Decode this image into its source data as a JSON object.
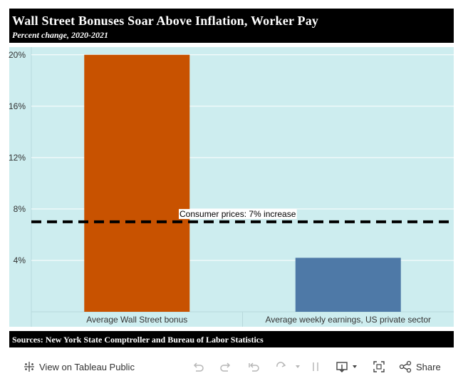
{
  "header": {
    "title": "Wall Street Bonuses Soar Above Inflation, Worker Pay",
    "subtitle": "Percent change, 2020-2021"
  },
  "chart_data": {
    "type": "bar",
    "categories": [
      "Average Wall Street bonus",
      "Average weekly earnings, US private sector"
    ],
    "values": [
      20,
      4.2
    ],
    "bar_colors": [
      "#c85200",
      "#4e79a7"
    ],
    "ylim": [
      0,
      20.6
    ],
    "yticks": [
      4,
      8,
      12,
      16,
      20
    ],
    "ytick_labels": [
      "4%",
      "8%",
      "12%",
      "16%",
      "20%"
    ],
    "grid": true,
    "background": "#cdedef",
    "reference_line": {
      "value": 7,
      "label": "Consumer prices: 7% increase",
      "style": "dashed",
      "color": "#000000"
    }
  },
  "footer": {
    "sources": "Sources: New York State Comptroller and Bureau of Labor Statistics"
  },
  "toolbar": {
    "view_label": "View on Tableau Public",
    "share_label": "Share",
    "icons": [
      "tableau-icon",
      "undo-icon",
      "redo-icon",
      "revert-icon",
      "refresh-icon",
      "pause-icon",
      "download-icon",
      "fullscreen-icon",
      "share-icon"
    ]
  }
}
